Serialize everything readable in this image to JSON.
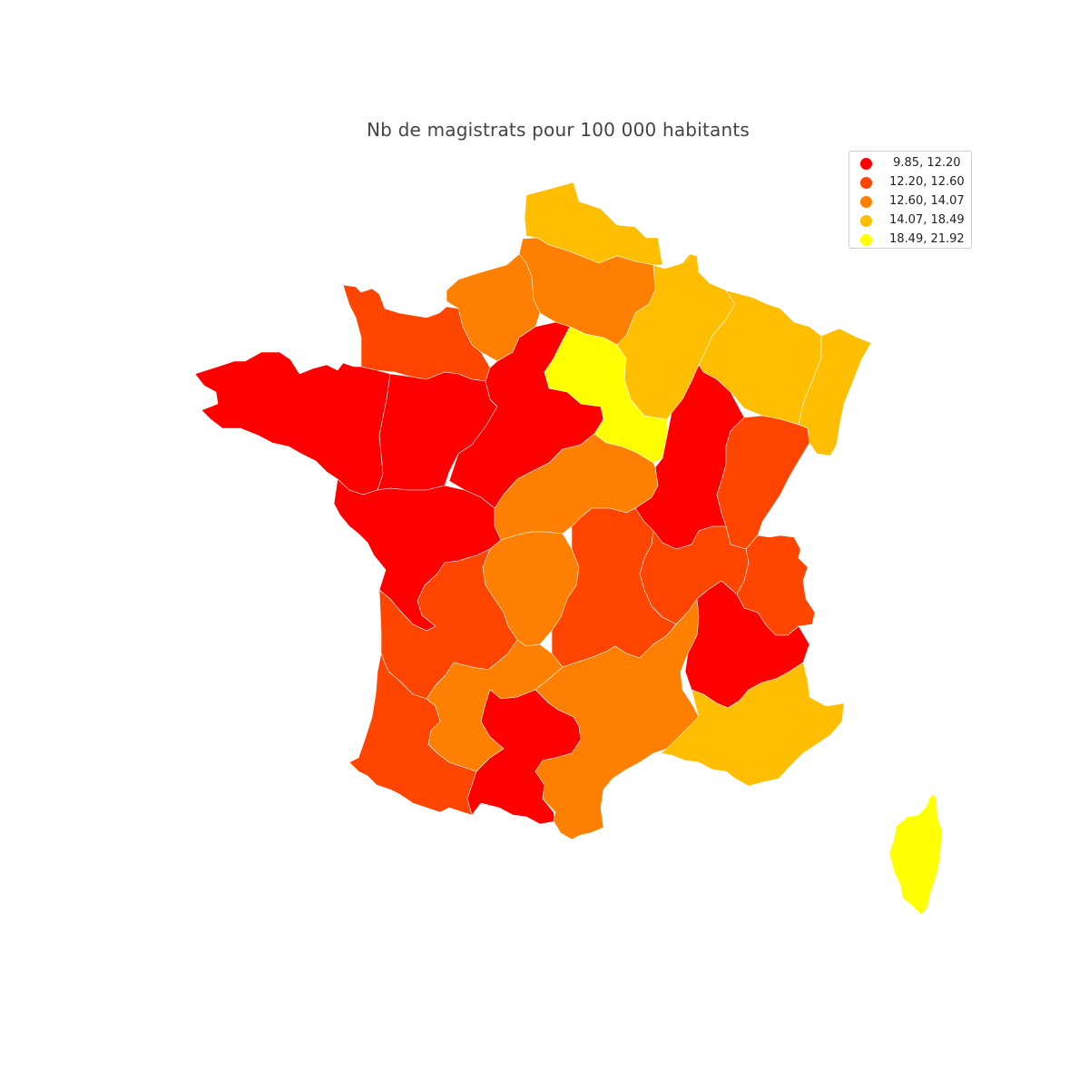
{
  "title": "Nb de magistrats pour 100 000 habitants",
  "legend": [
    {
      "label": " 9.85, 12.20",
      "color": "#ff0000"
    },
    {
      "label": "12.20, 12.60",
      "color": "#ff4500"
    },
    {
      "label": "12.60, 14.07",
      "color": "#ff8000"
    },
    {
      "label": "14.07, 18.49",
      "color": "#ffbf00"
    },
    {
      "label": "18.49, 21.92",
      "color": "#ffff00"
    }
  ],
  "chart_data": {
    "type": "choropleth",
    "title": "Nb de magistrats pour 100 000 habitants",
    "legend_placement": "top-right",
    "classes": [
      {
        "range": [
          9.85,
          12.2
        ],
        "color": "#ff0000"
      },
      {
        "range": [
          12.2,
          12.6
        ],
        "color": "#ff4500"
      },
      {
        "range": [
          12.6,
          14.07
        ],
        "color": "#ff8000"
      },
      {
        "range": [
          14.07,
          18.49
        ],
        "color": "#ffbf00"
      },
      {
        "range": [
          18.49,
          21.92
        ],
        "color": "#ffff00"
      }
    ]
  }
}
